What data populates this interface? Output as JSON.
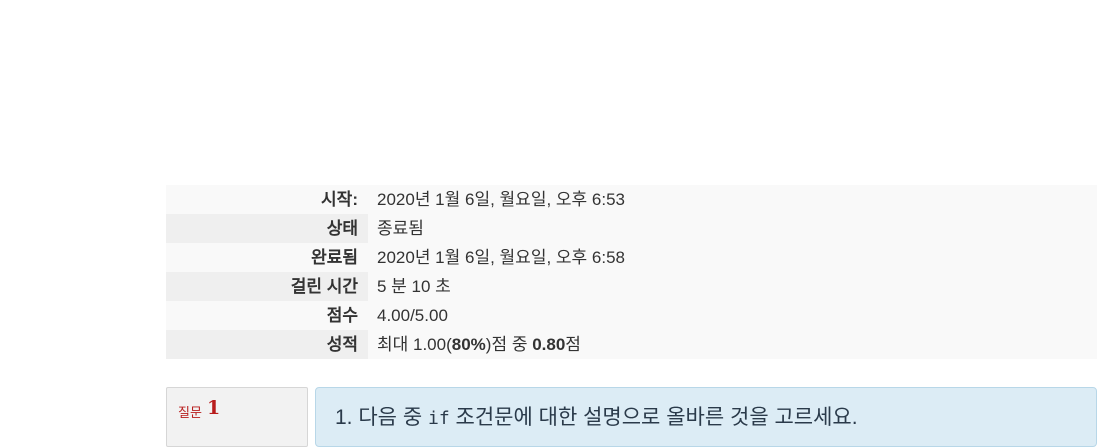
{
  "summary": {
    "rows": [
      {
        "label": "시작:",
        "value": "2020년 1월 6일, 월요일, 오후 6:53"
      },
      {
        "label": "상태",
        "value": "종료됨"
      },
      {
        "label": "완료됨",
        "value": "2020년 1월 6일, 월요일, 오후 6:58"
      },
      {
        "label": "걸린 시간",
        "value": "5 분 10 초"
      },
      {
        "label": "점수",
        "value": "4.00/5.00"
      },
      {
        "label": "성적",
        "value_prefix": "최대 1.00(",
        "value_bold1": "80%",
        "value_mid": ")점 중 ",
        "value_bold2": "0.80",
        "value_suffix": "점"
      }
    ]
  },
  "question": {
    "label": "질문",
    "number": "1",
    "text_prefix": "1. 다음 중 ",
    "text_code": "if",
    "text_suffix": " 조건문에 대한 설명으로 올바른 것을 고르세요."
  }
}
